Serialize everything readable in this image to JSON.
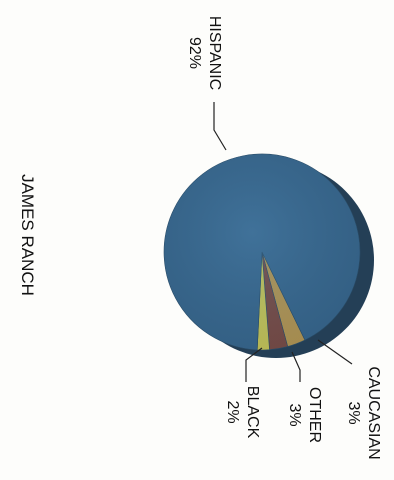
{
  "chart_data": {
    "type": "pie",
    "title": "JAMES RANCH",
    "categories": [
      "HISPANIC",
      "CAUCASIAN",
      "OTHER",
      "BLACK"
    ],
    "values": [
      92,
      3,
      3,
      2
    ],
    "value_labels": [
      "92%",
      "3%",
      "3%",
      "2%"
    ],
    "series": [
      {
        "name": "HISPANIC",
        "value": 92,
        "label": "92%",
        "color": "#3a6b93"
      },
      {
        "name": "CAUCASIAN",
        "value": 3,
        "label": "3%",
        "color": "#d2a54c"
      },
      {
        "name": "OTHER",
        "value": 3,
        "label": "3%",
        "color": "#8a4a3c"
      },
      {
        "name": "BLACK",
        "value": 2,
        "label": "2%",
        "color": "#e8df52"
      }
    ],
    "style": "3d-pie",
    "orientation": "rotated-90-clockwise"
  }
}
